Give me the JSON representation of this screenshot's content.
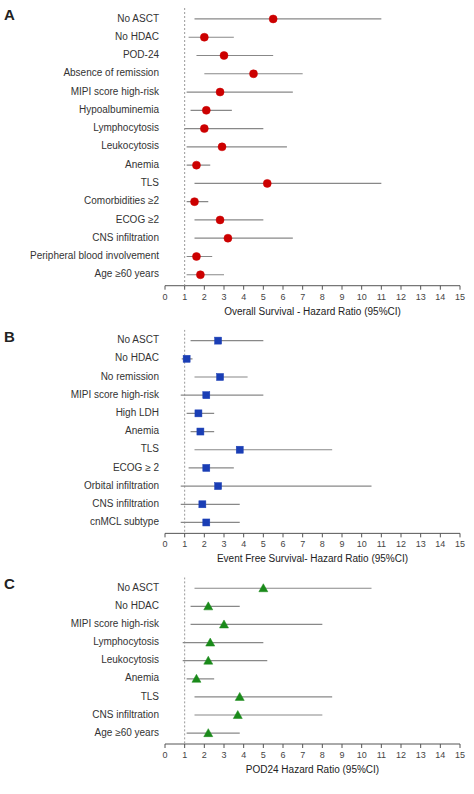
{
  "chart_data": [
    {
      "type": "forest",
      "title": "A",
      "xlabel": "Overall Survival - Hazard Ratio (95%CI)",
      "color": "#cc0000",
      "marker": "circle",
      "grid": false,
      "categories": [
        "No ASCT",
        "No HDAC",
        "POD-24",
        "Absence of remission",
        "MIPI score high-risk",
        "Hypoalbuminemia",
        "Lymphocytosis",
        "Leukocytosis",
        "Anemia",
        "TLS",
        "Comorbidities ≥2",
        "ECOG ≥2",
        "CNS infiltration",
        "Peripheral blood involvement",
        "Age ≥60 years"
      ],
      "values": [
        5.5,
        2.0,
        3.0,
        4.5,
        2.8,
        2.1,
        2.0,
        2.9,
        1.6,
        5.2,
        1.5,
        2.8,
        3.2,
        1.6,
        1.8
      ],
      "lower": [
        1.5,
        1.2,
        1.6,
        2.0,
        1.1,
        1.3,
        1.0,
        1.1,
        1.1,
        1.5,
        1.1,
        1.5,
        1.5,
        1.1,
        1.1
      ],
      "upper": [
        11.0,
        3.5,
        5.5,
        7.0,
        6.5,
        3.4,
        5.0,
        6.2,
        2.3,
        11.0,
        2.2,
        5.0,
        6.5,
        2.4,
        3.0
      ],
      "reference_line": 1.0,
      "xlim": [
        0,
        15
      ],
      "xticks": [
        0,
        1,
        2,
        3,
        4,
        5,
        6,
        7,
        8,
        9,
        10,
        11,
        12,
        13,
        14,
        15
      ]
    },
    {
      "type": "forest",
      "title": "B",
      "xlabel": "Event Free Survival- Hazard Ratio (95%CI)",
      "color": "#1a3eb5",
      "marker": "square",
      "grid": false,
      "categories": [
        "No ASCT",
        "No HDAC",
        "No  remission",
        "MIPI score high-risk",
        "High LDH",
        "Anemia",
        "TLS",
        "ECOG ≥ 2",
        "Orbital infiltration",
        "CNS infiltration",
        "cnMCL subtype"
      ],
      "values": [
        2.7,
        1.1,
        2.8,
        2.1,
        1.7,
        1.8,
        3.8,
        2.1,
        2.7,
        1.9,
        2.1
      ],
      "lower": [
        1.3,
        0.85,
        1.5,
        0.8,
        1.1,
        1.3,
        1.5,
        1.2,
        0.8,
        0.8,
        0.8
      ],
      "upper": [
        5.0,
        1.4,
        4.2,
        5.0,
        2.5,
        2.5,
        8.5,
        3.5,
        10.5,
        3.8,
        3.8
      ],
      "reference_line": 1.0,
      "xlim": [
        0,
        15
      ],
      "xticks": [
        0,
        1,
        2,
        3,
        4,
        5,
        6,
        7,
        8,
        9,
        10,
        11,
        12,
        13,
        14,
        15
      ]
    },
    {
      "type": "forest",
      "title": "C",
      "xlabel": "POD24 Hazard Ratio (95%CI)",
      "color": "#1a8a1a",
      "marker": "triangle",
      "grid": false,
      "categories": [
        "No ASCT",
        "No HDAC",
        "MIPI score high-risk",
        "Lymphocytosis",
        "Leukocytosis",
        "Anemia",
        "TLS",
        "CNS infiltration",
        "Age ≥60 years"
      ],
      "values": [
        5.0,
        2.2,
        3.0,
        2.3,
        2.2,
        1.6,
        3.8,
        3.7,
        2.2
      ],
      "lower": [
        1.5,
        1.3,
        1.3,
        0.9,
        0.9,
        1.1,
        1.5,
        1.5,
        1.1
      ],
      "upper": [
        10.5,
        3.8,
        8.0,
        5.0,
        5.2,
        2.5,
        8.5,
        8.0,
        3.8
      ],
      "reference_line": 1.0,
      "xlim": [
        0,
        15
      ],
      "xticks": [
        0,
        1,
        2,
        3,
        4,
        5,
        6,
        7,
        8,
        9,
        10,
        11,
        12,
        13,
        14,
        15
      ]
    }
  ]
}
